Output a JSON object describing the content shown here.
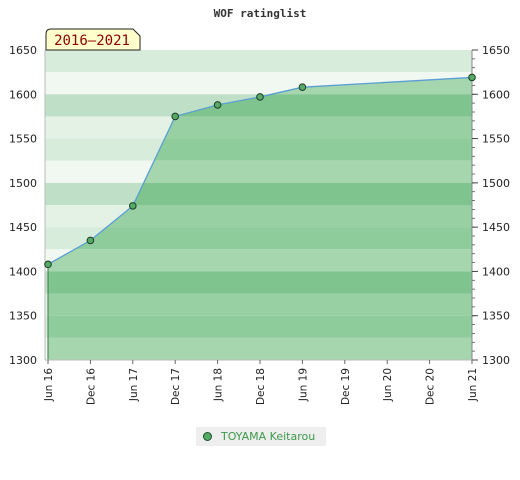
{
  "chart_data": {
    "type": "area",
    "title": "WOF ratinglist",
    "period_badge": "2016–2021",
    "ylim": [
      1300,
      1650
    ],
    "y_ticks": [
      1300,
      1350,
      1400,
      1450,
      1500,
      1550,
      1600,
      1650
    ],
    "x_ticks": [
      "Jun 16",
      "Dec 16",
      "Jun 17",
      "Dec 17",
      "Jun 18",
      "Dec 18",
      "Jun 19",
      "Dec 19",
      "Jun 20",
      "Dec 20",
      "Jun 21"
    ],
    "grid": true,
    "legend_position": "bottom",
    "series": [
      {
        "name": "TOYAMA Keitarou",
        "color": "#55aa66",
        "x": [
          "Jun 16",
          "Dec 16",
          "Jun 17",
          "Dec 17",
          "Jun 18",
          "Dec 18",
          "Jun 19",
          "Jun 21"
        ],
        "values": [
          1408,
          1435,
          1474,
          1575,
          1588,
          1597,
          1608,
          1619
        ]
      }
    ]
  }
}
